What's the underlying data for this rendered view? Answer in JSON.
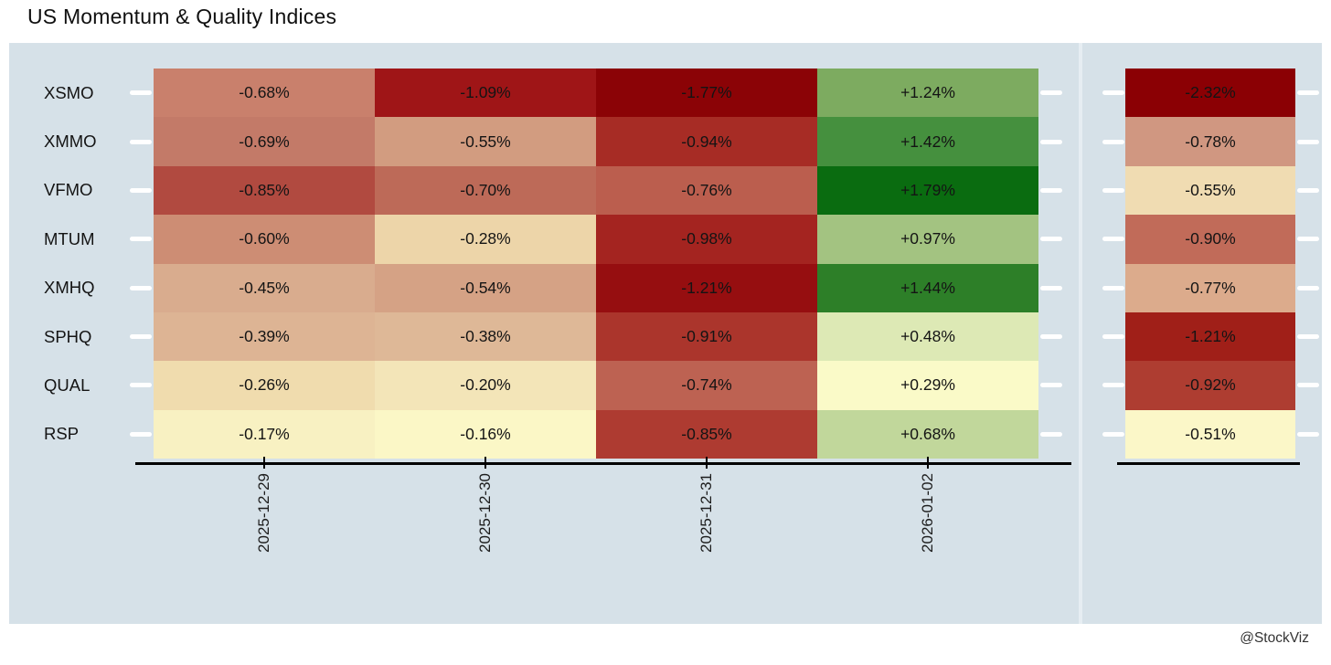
{
  "page": {
    "title": "US Momentum & Quality Indices",
    "watermark": "@StockViz"
  },
  "colors": {
    "panel_bg": "#d6e1e8",
    "panel_divider": "#e6edf2",
    "axis": "#000000",
    "tick_white": "#ffffff",
    "text": "#141414"
  },
  "chart_data": {
    "type": "heatmap",
    "title": "US Momentum & Quality Indices",
    "value_unit": "percent",
    "value_format": "signed, 2 decimals, % suffix",
    "legend": "none",
    "rows": [
      "XSMO",
      "XMMO",
      "VFMO",
      "MTUM",
      "XMHQ",
      "SPHQ",
      "QUAL",
      "RSP"
    ],
    "columns": [
      "2025-12-29",
      "2025-12-30",
      "2025-12-31",
      "2026-01-02"
    ],
    "values": [
      [
        -0.68,
        -1.09,
        -1.77,
        1.24
      ],
      [
        -0.69,
        -0.55,
        -0.94,
        1.42
      ],
      [
        -0.85,
        -0.7,
        -0.76,
        1.79
      ],
      [
        -0.6,
        -0.28,
        -0.98,
        0.97
      ],
      [
        -0.45,
        -0.54,
        -1.21,
        1.44
      ],
      [
        -0.39,
        -0.38,
        -0.91,
        0.48
      ],
      [
        -0.26,
        -0.2,
        -0.74,
        0.29
      ],
      [
        -0.17,
        -0.16,
        -0.85,
        0.68
      ]
    ],
    "cell_colors": [
      [
        "#c9806c",
        "#9f1517",
        "#8b0306",
        "#7dab60"
      ],
      [
        "#c37a68",
        "#d29c80",
        "#a72c25",
        "#45903e"
      ],
      [
        "#b14a40",
        "#bd6a58",
        "#bb5e4e",
        "#0a6c10"
      ],
      [
        "#cd8d74",
        "#edd5a9",
        "#a42420",
        "#a3c381"
      ],
      [
        "#d9ac8e",
        "#d5a285",
        "#960e10",
        "#2d7f28"
      ],
      [
        "#ddb494",
        "#deb897",
        "#ab352c",
        "#dde9b5"
      ],
      [
        "#f0dcae",
        "#f3e5b8",
        "#bd6252",
        "#fafac8"
      ],
      [
        "#f8f1c2",
        "#fbf7c6",
        "#ae3b31",
        "#c1d79b"
      ]
    ],
    "period_column": {
      "values": [
        -2.32,
        -0.78,
        -0.55,
        -0.9,
        -0.77,
        -1.21,
        -0.92,
        -0.51
      ],
      "colors": [
        "#8b0004",
        "#d09781",
        "#f0dcb2",
        "#c16b59",
        "#dcab8c",
        "#a01f18",
        "#ae3d31",
        "#fbf7c8"
      ]
    }
  }
}
